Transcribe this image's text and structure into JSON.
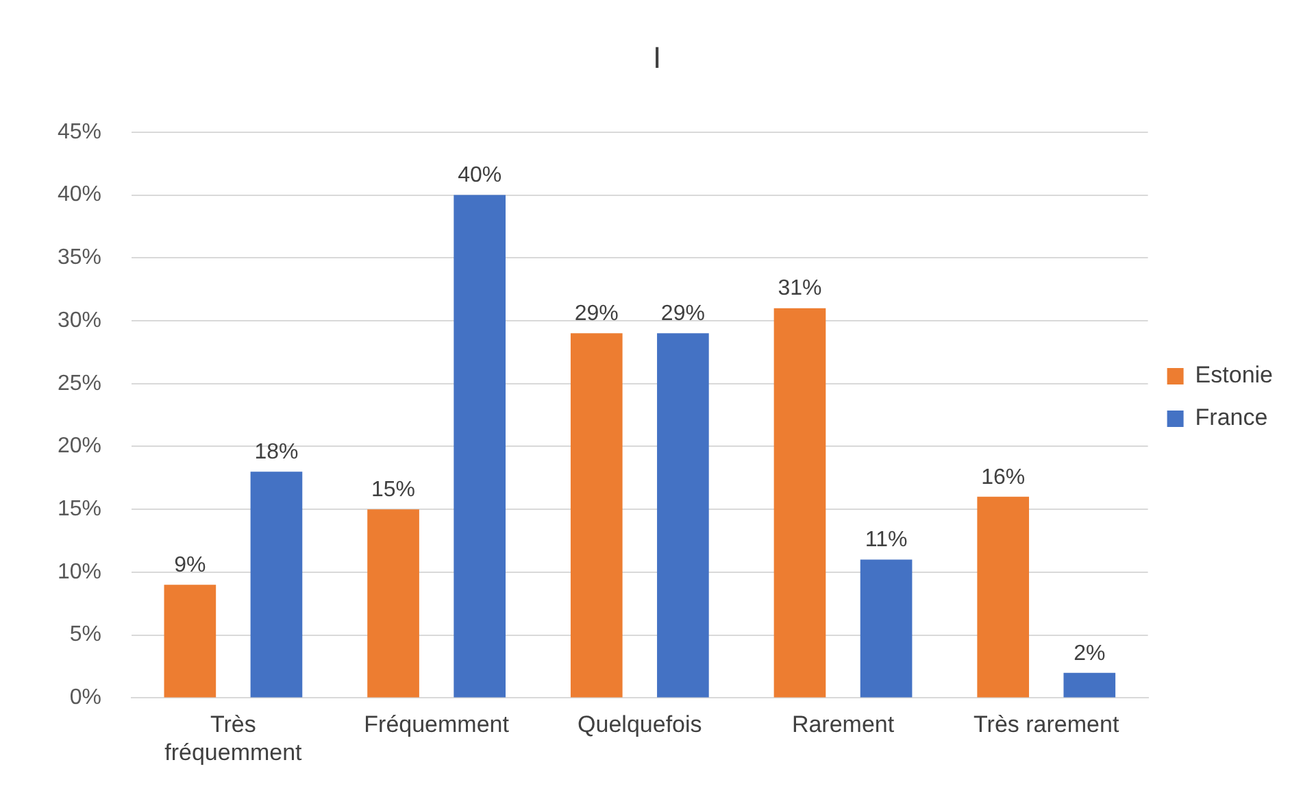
{
  "chart_data": {
    "type": "bar",
    "title": "I",
    "categories": [
      "Très fréquemment",
      "Fréquemment",
      "Quelquefois",
      "Rarement",
      "Très rarement"
    ],
    "series": [
      {
        "name": "Estonie",
        "color": "#ed7d31",
        "values": [
          9,
          15,
          29,
          31,
          16
        ],
        "value_labels": [
          "9%",
          "15%",
          "29%",
          "31%",
          "16%"
        ]
      },
      {
        "name": "France",
        "color": "#4472c4",
        "values": [
          18,
          40,
          29,
          11,
          2
        ],
        "value_labels": [
          "18%",
          "40%",
          "29%",
          "11%",
          "2%"
        ]
      }
    ],
    "ylim": [
      0,
      45
    ],
    "yticks": [
      {
        "value": 0,
        "label": "0%"
      },
      {
        "value": 5,
        "label": "5%"
      },
      {
        "value": 10,
        "label": "10%"
      },
      {
        "value": 15,
        "label": "15%"
      },
      {
        "value": 20,
        "label": "20%"
      },
      {
        "value": 25,
        "label": "25%"
      },
      {
        "value": 30,
        "label": "30%"
      },
      {
        "value": 35,
        "label": "35%"
      },
      {
        "value": 40,
        "label": "40%"
      },
      {
        "value": 45,
        "label": "45%"
      }
    ],
    "grid": "y",
    "legend": "right"
  }
}
